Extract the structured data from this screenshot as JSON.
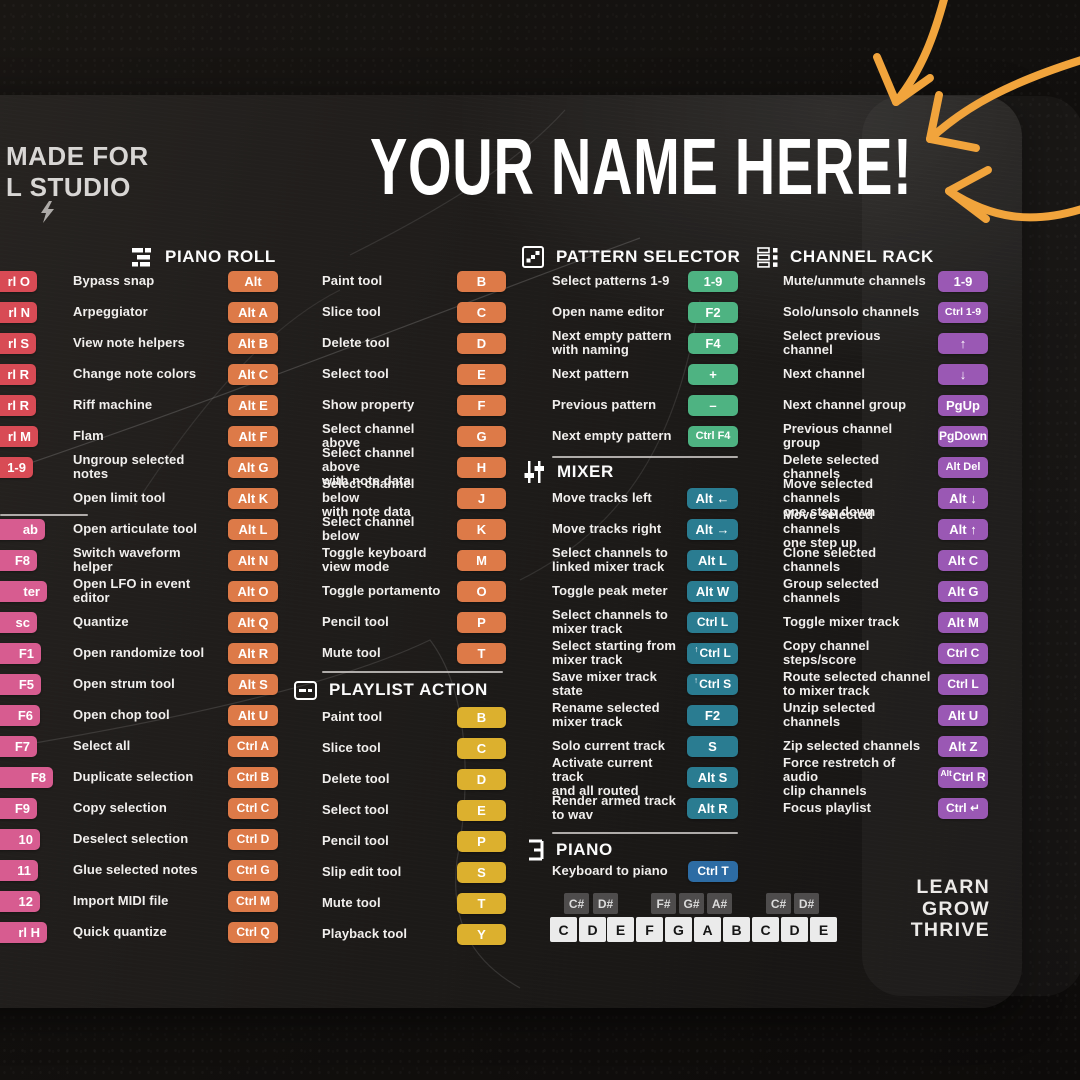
{
  "page": {
    "made_for": "MADE FOR\nL STUDIO",
    "name_title": "YOUR NAME HERE!",
    "footer": "LEARN\nGROW\nTHRIVE"
  },
  "colors": {
    "orange": "#dd7a48",
    "yellow": "#dcb02e",
    "red": "#d84b55",
    "pink": "#d75c90",
    "green": "#4eb382",
    "teal": "#2a7c91",
    "blue": "#2d6ca4",
    "purple": "#9a58b4",
    "sharp_key": "#4e4c4c",
    "natural_key": "#ebebeb",
    "arrow_accent": "#f1a43c"
  },
  "left_edge": {
    "red_badges": [
      "rl O",
      "rl N",
      "rl S",
      "rl R",
      "rl R",
      "rl M",
      "1-9"
    ],
    "pink_badges": [
      "ab",
      "F8",
      "ter",
      "sc",
      "F1",
      "F5",
      "F6",
      "F7",
      "F8",
      "F9",
      "10",
      "11",
      "12",
      "rl H"
    ]
  },
  "sections": {
    "piano_roll": {
      "title": "PIANO ROLL",
      "icon": "piano-roll-icon",
      "col_a": [
        {
          "label": "Bypass snap",
          "key": "Alt"
        },
        {
          "label": "Arpeggiator",
          "key": "Alt A"
        },
        {
          "label": "View note helpers",
          "key": "Alt B"
        },
        {
          "label": "Change note colors",
          "key": "Alt C"
        },
        {
          "label": "Riff machine",
          "key": "Alt E"
        },
        {
          "label": "Flam",
          "key": "Alt F"
        },
        {
          "label": "Ungroup selected notes",
          "key": "Alt G"
        },
        {
          "label": "Open limit tool",
          "key": "Alt K"
        },
        {
          "label": "Open articulate tool",
          "key": "Alt L"
        },
        {
          "label": "Switch waveform helper",
          "key": "Alt N"
        },
        {
          "label": "Open LFO in event editor",
          "key": "Alt O"
        },
        {
          "label": "Quantize",
          "key": "Alt Q"
        },
        {
          "label": "Open randomize tool",
          "key": "Alt R"
        },
        {
          "label": "Open strum tool",
          "key": "Alt S"
        },
        {
          "label": "Open chop tool",
          "key": "Alt U"
        },
        {
          "label": "Select all",
          "key": "Ctrl A"
        },
        {
          "label": "Duplicate selection",
          "key": "Ctrl B"
        },
        {
          "label": "Copy selection",
          "key": "Ctrl C"
        },
        {
          "label": "Deselect selection",
          "key": "Ctrl D"
        },
        {
          "label": "Glue selected notes",
          "key": "Ctrl G"
        },
        {
          "label": "Import MIDI file",
          "key": "Ctrl M"
        },
        {
          "label": "Quick quantize",
          "key": "Ctrl Q"
        }
      ],
      "col_b": [
        {
          "label": "Paint tool",
          "key": "B"
        },
        {
          "label": "Slice tool",
          "key": "C"
        },
        {
          "label": "Delete tool",
          "key": "D"
        },
        {
          "label": "Select tool",
          "key": "E"
        },
        {
          "label": "Show property",
          "key": "F"
        },
        {
          "label": "Select channel above",
          "key": "G"
        },
        {
          "label": "Select channel above\nwith note data",
          "key": "H"
        },
        {
          "label": "Select channel below\nwith note data",
          "key": "J"
        },
        {
          "label": "Select channel below",
          "key": "K"
        },
        {
          "label": "Toggle keyboard\nview mode",
          "key": "M"
        },
        {
          "label": "Toggle portamento",
          "key": "O"
        },
        {
          "label": "Pencil tool",
          "key": "P"
        },
        {
          "label": "Mute tool",
          "key": "T"
        }
      ]
    },
    "playlist_action": {
      "title": "PLAYLIST ACTION",
      "icon": "playlist-action-icon",
      "rows": [
        {
          "label": "Paint tool",
          "key": "B"
        },
        {
          "label": "Slice tool",
          "key": "C"
        },
        {
          "label": "Delete tool",
          "key": "D"
        },
        {
          "label": "Select tool",
          "key": "E"
        },
        {
          "label": "Pencil tool",
          "key": "P"
        },
        {
          "label": "Slip edit tool",
          "key": "S"
        },
        {
          "label": "Mute tool",
          "key": "T"
        },
        {
          "label": "Playback tool",
          "key": "Y"
        }
      ]
    },
    "pattern_selector": {
      "title": "PATTERN SELECTOR",
      "icon": "pattern-selector-icon",
      "rows": [
        {
          "label": "Select patterns 1-9",
          "key": "1-9"
        },
        {
          "label": "Open name editor",
          "key": "F2"
        },
        {
          "label": "Next empty pattern\nwith naming",
          "key": "F4"
        },
        {
          "label": "Next pattern",
          "key": "+"
        },
        {
          "label": "Previous pattern",
          "key": "–"
        },
        {
          "label": "Next empty pattern",
          "key": "Ctrl F4"
        }
      ]
    },
    "mixer": {
      "title": "MIXER",
      "icon": "mixer-icon",
      "rows": [
        {
          "label": "Move tracks left",
          "key": "Alt ←"
        },
        {
          "label": "Move tracks right",
          "key": "Alt →"
        },
        {
          "label": "Select channels to\nlinked mixer track",
          "key": "Alt L"
        },
        {
          "label": "Toggle peak meter",
          "key": "Alt W"
        },
        {
          "label": "Select channels to\nmixer track",
          "key": "Ctrl L"
        },
        {
          "label": "Select starting from\nmixer track",
          "key": "Ctrl L",
          "sup": "↑"
        },
        {
          "label": "Save mixer track state",
          "key": "Ctrl S",
          "sup": "↑"
        },
        {
          "label": "Rename selected\nmixer track",
          "key": "F2"
        },
        {
          "label": "Solo current track",
          "key": "S"
        },
        {
          "label": "Activate current track\nand all routed",
          "key": "Alt S"
        },
        {
          "label": "Render armed track\nto wav",
          "key": "Alt R"
        }
      ]
    },
    "piano": {
      "title": "PIANO",
      "icon": "piano-icon",
      "rows": [
        {
          "label": "Keyboard to piano",
          "key": "Ctrl T"
        }
      ],
      "keys": {
        "sharps": [
          "C#",
          "D#",
          "F#",
          "G#",
          "A#",
          "C#",
          "D#"
        ],
        "naturals": [
          "C",
          "D",
          "E",
          "F",
          "G",
          "A",
          "B",
          "C",
          "D",
          "E"
        ]
      }
    },
    "channel_rack": {
      "title": "CHANNEL RACK",
      "icon": "channel-rack-icon",
      "rows": [
        {
          "label": "Mute/unmute channels",
          "key": "1-9"
        },
        {
          "label": "Solo/unsolo channels",
          "key": "Ctrl 1-9"
        },
        {
          "label": "Select previous channel",
          "key": "↑"
        },
        {
          "label": "Next channel",
          "key": "↓"
        },
        {
          "label": "Next channel group",
          "key": "PgUp"
        },
        {
          "label": "Previous channel group",
          "key": "PgDown"
        },
        {
          "label": "Delete selected channels",
          "key": "Alt Del"
        },
        {
          "label": "Move selected channels\none step down",
          "key": "Alt ↓"
        },
        {
          "label": "Move selected channels\none step up",
          "key": "Alt ↑"
        },
        {
          "label": "Clone selected channels",
          "key": "Alt C"
        },
        {
          "label": "Group selected channels",
          "key": "Alt G"
        },
        {
          "label": "Toggle mixer track",
          "key": "Alt M"
        },
        {
          "label": "Copy channel steps/score",
          "key": "Ctrl C"
        },
        {
          "label": "Route selected channel\nto mixer track",
          "key": "Ctrl L"
        },
        {
          "label": "Unzip selected channels",
          "key": "Alt U"
        },
        {
          "label": "Zip selected channels",
          "key": "Alt Z"
        },
        {
          "label": "Force restretch of audio\nclip channels",
          "key": "Ctrl R",
          "sup": "Alt"
        },
        {
          "label": "Focus playlist",
          "key": "Ctrl ↵"
        }
      ]
    }
  }
}
